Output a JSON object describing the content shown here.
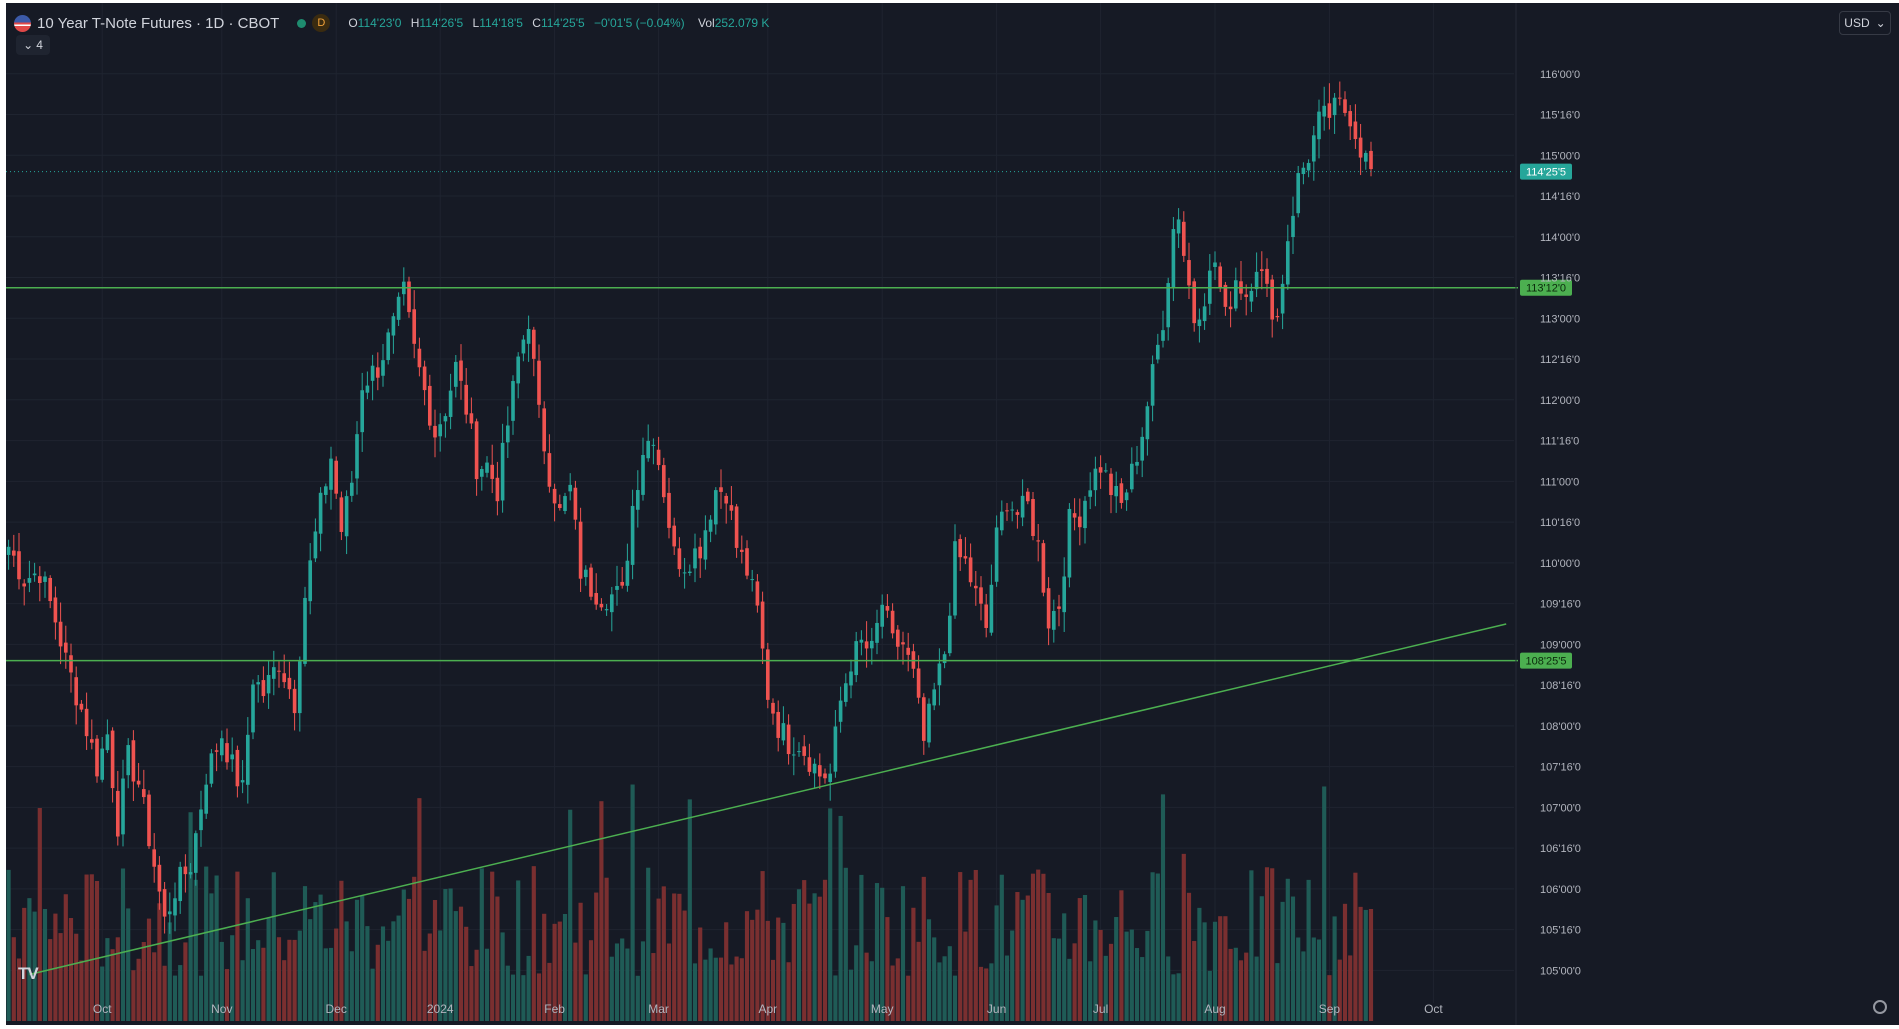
{
  "header": {
    "title": "10 Year T-Note Futures · 1D · CBOT",
    "interval_badge": "D",
    "ohlc": [
      {
        "k": "O",
        "v": "114'23'0"
      },
      {
        "k": "H",
        "v": "114'26'5"
      },
      {
        "k": "L",
        "v": "114'18'5"
      },
      {
        "k": "C",
        "v": "114'25'5"
      }
    ],
    "change": "−0'01'5 (−0.04%)",
    "vol_label": "Vol",
    "vol_value": "252.079 K",
    "indicators_count": "4",
    "currency": "USD"
  },
  "colors": {
    "background": "#161a25",
    "up": "#26a69a",
    "down": "#ef5350",
    "horizontal_line": "#4caf50",
    "trend_line": "#4caf50",
    "grid": "#1f2430",
    "axis_text": "#b2b5be",
    "price_label_bg": "#26a69a"
  },
  "chart_data": {
    "type": "candlestick",
    "title": "10 Year T-Note Futures · 1D · CBOT",
    "interval": "1D",
    "y_ticks": [
      105.0,
      105.5,
      106.0,
      106.5,
      107.0,
      107.5,
      108.0,
      108.5,
      109.0,
      109.5,
      110.0,
      110.5,
      111.0,
      111.5,
      112.0,
      112.5,
      113.0,
      113.5,
      114.0,
      114.5,
      115.0,
      115.5,
      116.0
    ],
    "y_tick_labels": [
      "105'00'0",
      "105'16'0",
      "106'00'0",
      "106'16'0",
      "107'00'0",
      "107'16'0",
      "108'00'0",
      "108'16'0",
      "109'00'0",
      "109'16'0",
      "110'00'0",
      "110'16'0",
      "111'00'0",
      "111'16'0",
      "112'00'0",
      "112'16'0",
      "113'00'0",
      "113'16'0",
      "114'00'0",
      "114'16'0",
      "115'00'0",
      "115'16'0",
      "116'00'0"
    ],
    "ylim": [
      104.6,
      116.5
    ],
    "x_labels": [
      {
        "label": "Oct",
        "i": 18
      },
      {
        "label": "Nov",
        "i": 41
      },
      {
        "label": "Dec",
        "i": 63
      },
      {
        "label": "2024",
        "i": 83
      },
      {
        "label": "Feb",
        "i": 105
      },
      {
        "label": "Mar",
        "i": 125
      },
      {
        "label": "Apr",
        "i": 146
      },
      {
        "label": "May",
        "i": 168
      },
      {
        "label": "Jun",
        "i": 190
      },
      {
        "label": "Jul",
        "i": 210
      },
      {
        "label": "Aug",
        "i": 232
      },
      {
        "label": "Sep",
        "i": 254
      },
      {
        "label": "Oct",
        "i": 274
      }
    ],
    "n_slots": 290,
    "last_price": 114.8,
    "last_price_label": "114'25'5",
    "horizontal_lines": [
      {
        "price": 113.375,
        "label": "113'12'0"
      },
      {
        "price": 108.8,
        "label": "108'25'5"
      }
    ],
    "trend_line": {
      "from": {
        "i": 4,
        "price": 104.95
      },
      "to": {
        "i": 288,
        "price": 109.25
      }
    },
    "keypoints": [
      [
        0,
        110.2
      ],
      [
        3,
        109.8
      ],
      [
        6,
        109.9
      ],
      [
        9,
        109.3
      ],
      [
        11,
        108.8
      ],
      [
        14,
        108.2
      ],
      [
        17,
        107.5
      ],
      [
        19,
        107.9
      ],
      [
        21,
        106.8
      ],
      [
        23,
        107.6
      ],
      [
        25,
        107.3
      ],
      [
        28,
        106.3
      ],
      [
        30,
        105.6
      ],
      [
        32,
        106.0
      ],
      [
        35,
        106.3
      ],
      [
        38,
        107.4
      ],
      [
        41,
        107.9
      ],
      [
        43,
        107.5
      ],
      [
        45,
        107.2
      ],
      [
        47,
        108.6
      ],
      [
        49,
        108.4
      ],
      [
        52,
        108.8
      ],
      [
        55,
        108.3
      ],
      [
        57,
        109.6
      ],
      [
        60,
        110.7
      ],
      [
        62,
        111.3
      ],
      [
        64,
        110.4
      ],
      [
        66,
        111.0
      ],
      [
        68,
        112.2
      ],
      [
        71,
        112.4
      ],
      [
        74,
        112.9
      ],
      [
        76,
        113.3
      ],
      [
        78,
        112.6
      ],
      [
        80,
        112.1
      ],
      [
        82,
        111.6
      ],
      [
        84,
        111.9
      ],
      [
        86,
        112.4
      ],
      [
        88,
        111.9
      ],
      [
        90,
        111.2
      ],
      [
        92,
        111.2
      ],
      [
        94,
        110.9
      ],
      [
        96,
        111.7
      ],
      [
        98,
        112.5
      ],
      [
        100,
        113.0
      ],
      [
        102,
        111.8
      ],
      [
        104,
        111.1
      ],
      [
        106,
        110.6
      ],
      [
        108,
        110.9
      ],
      [
        110,
        109.9
      ],
      [
        112,
        109.7
      ],
      [
        114,
        109.6
      ],
      [
        116,
        109.6
      ],
      [
        118,
        109.6
      ],
      [
        120,
        110.7
      ],
      [
        122,
        111.4
      ],
      [
        124,
        111.6
      ],
      [
        126,
        110.9
      ],
      [
        128,
        110.1
      ],
      [
        130,
        110.0
      ],
      [
        133,
        110.2
      ],
      [
        136,
        110.9
      ],
      [
        138,
        110.9
      ],
      [
        140,
        110.2
      ],
      [
        142,
        109.9
      ],
      [
        144,
        109.4
      ],
      [
        146,
        108.4
      ],
      [
        148,
        108.0
      ],
      [
        150,
        107.8
      ],
      [
        152,
        107.8
      ],
      [
        154,
        107.6
      ],
      [
        156,
        107.4
      ],
      [
        158,
        107.4
      ],
      [
        160,
        108.3
      ],
      [
        162,
        108.8
      ],
      [
        164,
        109.0
      ],
      [
        166,
        108.9
      ],
      [
        168,
        109.5
      ],
      [
        170,
        109.0
      ],
      [
        172,
        109.0
      ],
      [
        174,
        108.6
      ],
      [
        176,
        107.8
      ],
      [
        178,
        108.4
      ],
      [
        180,
        108.9
      ],
      [
        182,
        110.1
      ],
      [
        184,
        110.0
      ],
      [
        186,
        109.6
      ],
      [
        188,
        109.2
      ],
      [
        190,
        110.3
      ],
      [
        192,
        110.8
      ],
      [
        194,
        110.6
      ],
      [
        196,
        110.7
      ],
      [
        198,
        110.2
      ],
      [
        200,
        109.3
      ],
      [
        202,
        109.5
      ],
      [
        204,
        110.5
      ],
      [
        206,
        110.6
      ],
      [
        208,
        111.0
      ],
      [
        210,
        111.2
      ],
      [
        212,
        110.9
      ],
      [
        214,
        110.7
      ],
      [
        216,
        111.1
      ],
      [
        218,
        111.6
      ],
      [
        220,
        112.3
      ],
      [
        222,
        113.0
      ],
      [
        224,
        114.1
      ],
      [
        225,
        114.3
      ],
      [
        226,
        113.8
      ],
      [
        228,
        113.0
      ],
      [
        230,
        113.3
      ],
      [
        232,
        113.7
      ],
      [
        234,
        113.0
      ],
      [
        236,
        113.5
      ],
      [
        238,
        113.3
      ],
      [
        240,
        113.7
      ],
      [
        242,
        113.3
      ],
      [
        244,
        113.0
      ],
      [
        246,
        114.0
      ],
      [
        248,
        114.7
      ],
      [
        250,
        115.0
      ],
      [
        252,
        115.4
      ],
      [
        254,
        115.5
      ],
      [
        256,
        115.6
      ],
      [
        258,
        115.5
      ],
      [
        260,
        115.1
      ],
      [
        262,
        114.8
      ]
    ],
    "volume_seed": 7,
    "volume_bar_count": 263
  }
}
